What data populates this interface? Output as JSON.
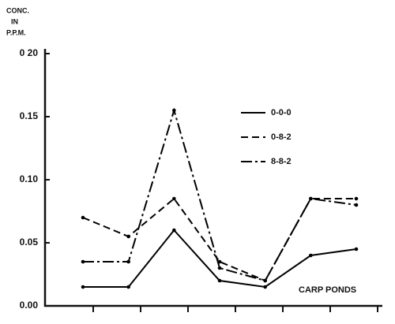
{
  "chart_data": {
    "type": "line",
    "ylabel": [
      "CONC.",
      "IN",
      "P.P.M."
    ],
    "xlabel": "CARP PONDS",
    "categories": [
      null,
      null,
      null,
      null,
      null,
      null,
      null
    ],
    "series": [
      {
        "name": "0-0-0",
        "color": "#000000",
        "dash": "solid",
        "values": [
          0.015,
          0.015,
          0.06,
          0.02,
          0.015,
          0.04,
          0.045
        ]
      },
      {
        "name": "0-8-2",
        "color": "#000000",
        "dash": "dashed",
        "values": [
          0.07,
          0.055,
          0.085,
          0.035,
          0.02,
          0.085,
          0.085
        ]
      },
      {
        "name": "8-8-2",
        "color": "#000000",
        "dash": "dashdot",
        "values": [
          0.035,
          0.035,
          0.155,
          0.03,
          0.02,
          0.085,
          0.08
        ]
      }
    ],
    "ylim": [
      0,
      0.2
    ],
    "yticks": [
      {
        "value": 0,
        "label": "0.00"
      },
      0.05,
      {
        "value": 0.1,
        "label": "0.10"
      },
      0.15,
      {
        "value": 0.2,
        "label": "0 20"
      }
    ],
    "grid": false
  }
}
